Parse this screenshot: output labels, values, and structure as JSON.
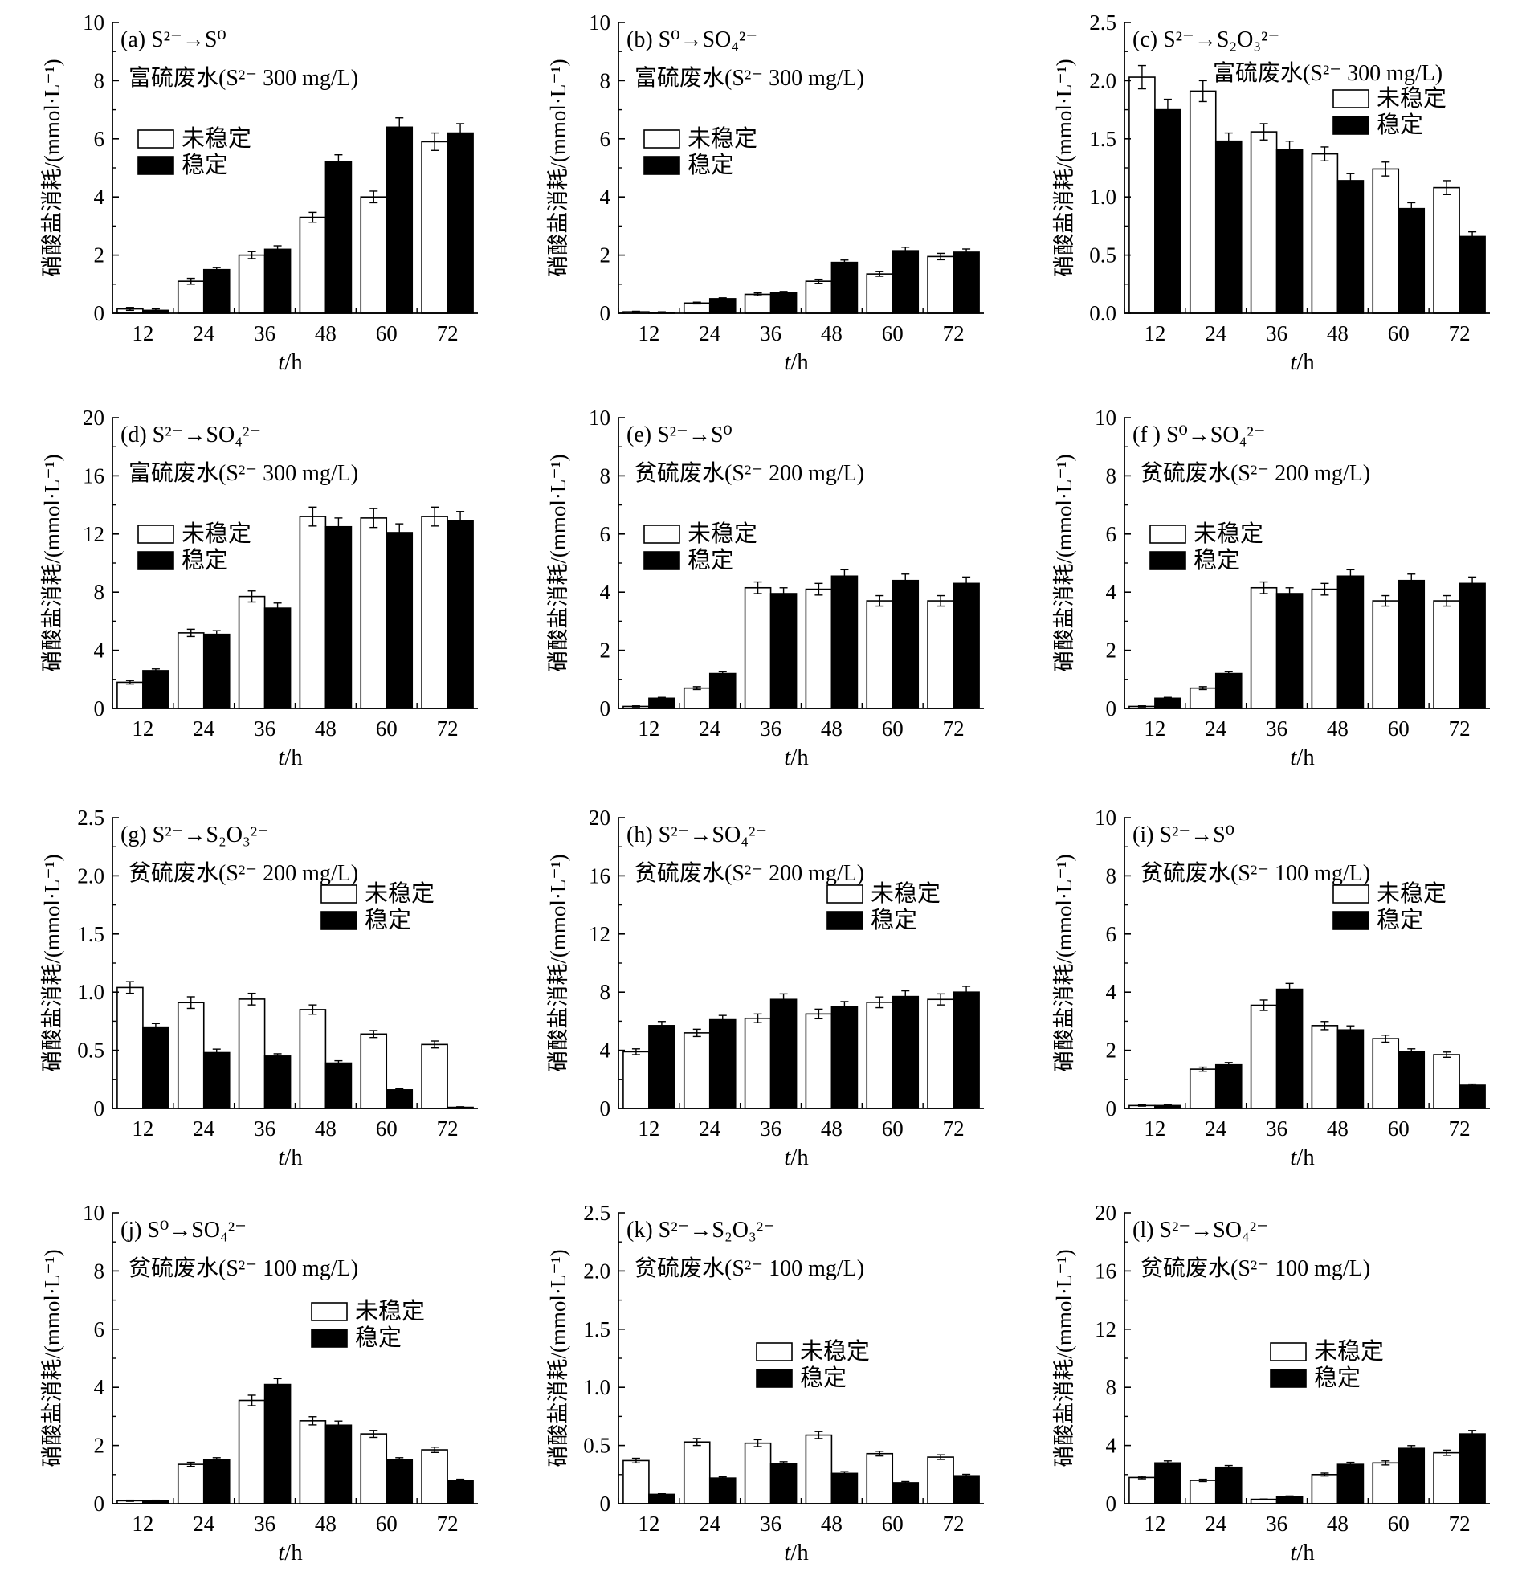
{
  "shared": {
    "categories": [
      "12",
      "24",
      "36",
      "48",
      "60",
      "72"
    ],
    "ylabel": "硝酸盐消耗/(mmol·L⁻¹)",
    "xlabel_var": "t",
    "xlabel_unit": "/h",
    "legend": [
      "未稳定",
      "稳定"
    ],
    "colors": {
      "unstable": "#ffffff",
      "stable": "#000000",
      "axis": "#000000"
    }
  },
  "chart_data": [
    {
      "id": "a",
      "type": "bar",
      "title": "(a)  S²⁻→S⁰",
      "subtitle": "富硫废水(S²⁻  300 mg/L)",
      "ylim": [
        0,
        10
      ],
      "yticks": [
        "0",
        "2",
        "4",
        "6",
        "8",
        "10"
      ],
      "legend_position": "left",
      "categories": [
        "12",
        "24",
        "36",
        "48",
        "60",
        "72"
      ],
      "series": [
        {
          "name": "未稳定",
          "values": [
            0.15,
            1.1,
            2.0,
            3.3,
            4.0,
            5.9
          ],
          "errors": [
            0.05,
            0.1,
            0.12,
            0.17,
            0.2,
            0.3
          ]
        },
        {
          "name": "稳定",
          "values": [
            0.1,
            1.5,
            2.2,
            5.2,
            6.4,
            6.2
          ],
          "errors": [
            0.05,
            0.07,
            0.12,
            0.25,
            0.32,
            0.32
          ]
        }
      ]
    },
    {
      "id": "b",
      "type": "bar",
      "title": "(b)  S⁰→SO₄²⁻",
      "subtitle": "富硫废水(S²⁻  300 mg/L)",
      "ylim": [
        0,
        10
      ],
      "yticks": [
        "0",
        "2",
        "4",
        "6",
        "8",
        "10"
      ],
      "legend_position": "left",
      "categories": [
        "12",
        "24",
        "36",
        "48",
        "60",
        "72"
      ],
      "series": [
        {
          "name": "未稳定",
          "values": [
            0.05,
            0.35,
            0.65,
            1.1,
            1.35,
            1.95
          ],
          "errors": [
            0.02,
            0.03,
            0.05,
            0.07,
            0.08,
            0.11
          ]
        },
        {
          "name": "稳定",
          "values": [
            0.03,
            0.5,
            0.7,
            1.75,
            2.15,
            2.1
          ],
          "errors": [
            0.02,
            0.03,
            0.05,
            0.08,
            0.12,
            0.11
          ]
        }
      ]
    },
    {
      "id": "c",
      "type": "bar",
      "title": "(c)  S²⁻→S₂O₃²⁻",
      "subtitle": "富硫废水(S²⁻  300 mg/L)",
      "ylim": [
        0,
        2.5
      ],
      "yticks": [
        "0.0",
        "0.5",
        "1.0",
        "1.5",
        "2.0",
        "2.5"
      ],
      "legend_position": "right",
      "categories": [
        "12",
        "24",
        "36",
        "48",
        "60",
        "72"
      ],
      "series": [
        {
          "name": "未稳定",
          "values": [
            2.03,
            1.91,
            1.56,
            1.37,
            1.24,
            1.08
          ],
          "errors": [
            0.1,
            0.09,
            0.07,
            0.06,
            0.06,
            0.06
          ]
        },
        {
          "name": "稳定",
          "values": [
            1.75,
            1.48,
            1.41,
            1.14,
            0.9,
            0.66
          ],
          "errors": [
            0.09,
            0.07,
            0.07,
            0.06,
            0.05,
            0.04
          ]
        }
      ]
    },
    {
      "id": "d",
      "type": "bar",
      "title": "(d)  S²⁻→SO₄²⁻",
      "subtitle": "富硫废水(S²⁻  300 mg/L)",
      "ylim": [
        0,
        20
      ],
      "yticks": [
        "0",
        "4",
        "8",
        "12",
        "16",
        "20"
      ],
      "legend_position": "left",
      "categories": [
        "12",
        "24",
        "36",
        "48",
        "60",
        "72"
      ],
      "series": [
        {
          "name": "未稳定",
          "values": [
            1.8,
            5.2,
            7.7,
            13.2,
            13.1,
            13.2
          ],
          "errors": [
            0.12,
            0.25,
            0.38,
            0.65,
            0.65,
            0.65
          ]
        },
        {
          "name": "稳定",
          "values": [
            2.6,
            5.1,
            6.9,
            12.5,
            12.1,
            12.9
          ],
          "errors": [
            0.12,
            0.25,
            0.35,
            0.6,
            0.6,
            0.65
          ]
        }
      ]
    },
    {
      "id": "e",
      "type": "bar",
      "title": "(e)  S²⁻→S⁰",
      "subtitle": "贫硫废水(S²⁻  200 mg/L)",
      "ylim": [
        0,
        10
      ],
      "yticks": [
        "0",
        "2",
        "4",
        "6",
        "8",
        "10"
      ],
      "legend_position": "left",
      "categories": [
        "12",
        "24",
        "36",
        "48",
        "60",
        "72"
      ],
      "series": [
        {
          "name": "未稳定",
          "values": [
            0.07,
            0.7,
            4.15,
            4.1,
            3.7,
            3.7
          ],
          "errors": [
            0.02,
            0.05,
            0.2,
            0.2,
            0.18,
            0.18
          ]
        },
        {
          "name": "稳定",
          "values": [
            0.35,
            1.2,
            3.95,
            4.55,
            4.4,
            4.3
          ],
          "errors": [
            0.03,
            0.06,
            0.2,
            0.22,
            0.22,
            0.22
          ]
        }
      ]
    },
    {
      "id": "f",
      "type": "bar",
      "title": "(f )  S⁰→SO₄²⁻",
      "subtitle": "贫硫废水(S²⁻  200 mg/L)",
      "ylim": [
        0,
        10
      ],
      "yticks": [
        "0",
        "2",
        "4",
        "6",
        "8",
        "10"
      ],
      "legend_position": "left",
      "categories": [
        "12",
        "24",
        "36",
        "48",
        "60",
        "72"
      ],
      "series": [
        {
          "name": "未稳定",
          "values": [
            0.07,
            0.7,
            4.15,
            4.1,
            3.7,
            3.7
          ],
          "errors": [
            0.02,
            0.05,
            0.2,
            0.2,
            0.18,
            0.18
          ]
        },
        {
          "name": "稳定",
          "values": [
            0.35,
            1.2,
            3.95,
            4.55,
            4.4,
            4.3
          ],
          "errors": [
            0.03,
            0.06,
            0.2,
            0.22,
            0.22,
            0.22
          ]
        }
      ]
    },
    {
      "id": "g",
      "type": "bar",
      "title": "(g)  S²⁻→S₂O₃²⁻",
      "subtitle": "贫硫废水(S²⁻  200 mg/L)",
      "ylim": [
        0,
        2.5
      ],
      "yticks": [
        "0",
        "0.5",
        "1.0",
        "1.5",
        "2.0",
        "2.5"
      ],
      "legend_position": "right",
      "categories": [
        "12",
        "24",
        "36",
        "48",
        "60",
        "72"
      ],
      "series": [
        {
          "name": "未稳定",
          "values": [
            1.04,
            0.91,
            0.94,
            0.85,
            0.64,
            0.55
          ],
          "errors": [
            0.05,
            0.05,
            0.05,
            0.04,
            0.03,
            0.03
          ]
        },
        {
          "name": "稳定",
          "values": [
            0.7,
            0.48,
            0.45,
            0.39,
            0.16,
            0.01
          ],
          "errors": [
            0.03,
            0.03,
            0.02,
            0.02,
            0.01,
            0.005
          ]
        }
      ]
    },
    {
      "id": "h",
      "type": "bar",
      "title": "(h)  S²⁻→SO₄²⁻",
      "subtitle": "贫硫废水(S²⁻  200 mg/L)",
      "ylim": [
        0,
        20
      ],
      "yticks": [
        "0",
        "4",
        "8",
        "12",
        "16",
        "20"
      ],
      "legend_position": "right",
      "categories": [
        "12",
        "24",
        "36",
        "48",
        "60",
        "72"
      ],
      "series": [
        {
          "name": "未稳定",
          "values": [
            3.9,
            5.2,
            6.2,
            6.5,
            7.3,
            7.5
          ],
          "errors": [
            0.2,
            0.25,
            0.3,
            0.33,
            0.37,
            0.38
          ]
        },
        {
          "name": "稳定",
          "values": [
            5.7,
            6.1,
            7.5,
            7.0,
            7.7,
            8.0
          ],
          "errors": [
            0.28,
            0.3,
            0.38,
            0.35,
            0.39,
            0.4
          ]
        }
      ]
    },
    {
      "id": "i",
      "type": "bar",
      "title": "(i)  S²⁻→S⁰",
      "subtitle": "贫硫废水(S²⁻  100 mg/L)",
      "ylim": [
        0,
        10
      ],
      "yticks": [
        "0",
        "2",
        "4",
        "6",
        "8",
        "10"
      ],
      "legend_position": "right",
      "categories": [
        "12",
        "24",
        "36",
        "48",
        "60",
        "72"
      ],
      "series": [
        {
          "name": "未稳定",
          "values": [
            0.1,
            1.35,
            3.55,
            2.85,
            2.4,
            1.85
          ],
          "errors": [
            0.02,
            0.07,
            0.18,
            0.14,
            0.12,
            0.09
          ]
        },
        {
          "name": "稳定",
          "values": [
            0.1,
            1.5,
            4.1,
            2.7,
            1.95,
            0.8
          ],
          "errors": [
            0.02,
            0.08,
            0.2,
            0.14,
            0.1,
            0.04
          ]
        }
      ]
    },
    {
      "id": "j",
      "type": "bar",
      "title": "(j)  S⁰→SO₄²⁻",
      "subtitle": "贫硫废水(S²⁻  100 mg/L)",
      "ylim": [
        0,
        10
      ],
      "yticks": [
        "0",
        "2",
        "4",
        "6",
        "8",
        "10"
      ],
      "legend_position": "right",
      "categories": [
        "12",
        "24",
        "36",
        "48",
        "60",
        "72"
      ],
      "series": [
        {
          "name": "未稳定",
          "values": [
            0.1,
            1.35,
            3.55,
            2.85,
            2.4,
            1.85
          ],
          "errors": [
            0.02,
            0.07,
            0.18,
            0.14,
            0.12,
            0.09
          ]
        },
        {
          "name": "稳定",
          "values": [
            0.1,
            1.5,
            4.1,
            2.7,
            1.5,
            0.8
          ],
          "errors": [
            0.02,
            0.08,
            0.2,
            0.14,
            0.08,
            0.04
          ]
        }
      ]
    },
    {
      "id": "k",
      "type": "bar",
      "title": "(k)  S²⁻→S₂O₃²⁻",
      "subtitle": "贫硫废水(S²⁻  100 mg/L)",
      "ylim": [
        0,
        2.5
      ],
      "yticks": [
        "0",
        "0.5",
        "1.0",
        "1.5",
        "2.0",
        "2.5"
      ],
      "legend_position": "center",
      "categories": [
        "12",
        "24",
        "36",
        "48",
        "60",
        "72"
      ],
      "series": [
        {
          "name": "未稳定",
          "values": [
            0.37,
            0.53,
            0.52,
            0.59,
            0.43,
            0.4
          ],
          "errors": [
            0.02,
            0.03,
            0.03,
            0.03,
            0.02,
            0.02
          ]
        },
        {
          "name": "稳定",
          "values": [
            0.08,
            0.22,
            0.34,
            0.26,
            0.18,
            0.24
          ],
          "errors": [
            0.005,
            0.01,
            0.02,
            0.015,
            0.01,
            0.012
          ]
        }
      ]
    },
    {
      "id": "l",
      "type": "bar",
      "title": "(l)  S²⁻→SO₄²⁻",
      "subtitle": "贫硫废水(S²⁻  100 mg/L)",
      "ylim": [
        0,
        20
      ],
      "yticks": [
        "0",
        "4",
        "8",
        "12",
        "16",
        "20"
      ],
      "legend_position": "center",
      "categories": [
        "12",
        "24",
        "36",
        "48",
        "60",
        "72"
      ],
      "series": [
        {
          "name": "未稳定",
          "values": [
            1.8,
            1.6,
            0.3,
            2.0,
            2.8,
            3.5
          ],
          "errors": [
            0.09,
            0.08,
            0.02,
            0.1,
            0.14,
            0.18
          ]
        },
        {
          "name": "稳定",
          "values": [
            2.8,
            2.5,
            0.5,
            2.7,
            3.8,
            4.8
          ],
          "errors": [
            0.14,
            0.12,
            0.03,
            0.14,
            0.19,
            0.24
          ]
        }
      ]
    }
  ]
}
